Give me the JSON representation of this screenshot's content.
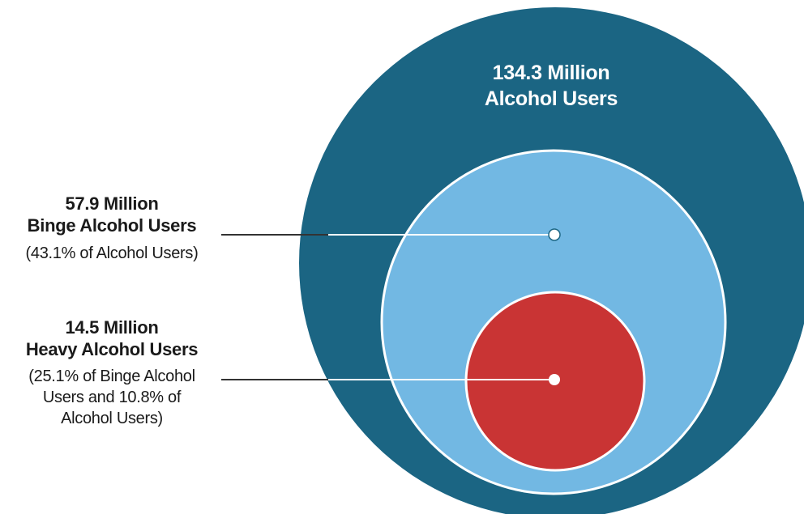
{
  "diagram": {
    "outer": {
      "value": "134.3 Million",
      "name": "Alcohol Users",
      "color": "#1b6583"
    },
    "middle": {
      "value": "57.9 Million",
      "name": "Binge Alcohol Users",
      "note": "(43.1% of Alcohol Users)",
      "color": "#72b8e3"
    },
    "inner": {
      "value": "14.5 Million",
      "name": "Heavy Alcohol Users",
      "note_line1": "(25.1% of Binge Alcohol",
      "note_line2": "Users and 10.8% of",
      "note_line3": "Alcohol Users)",
      "color": "#c93434"
    }
  }
}
